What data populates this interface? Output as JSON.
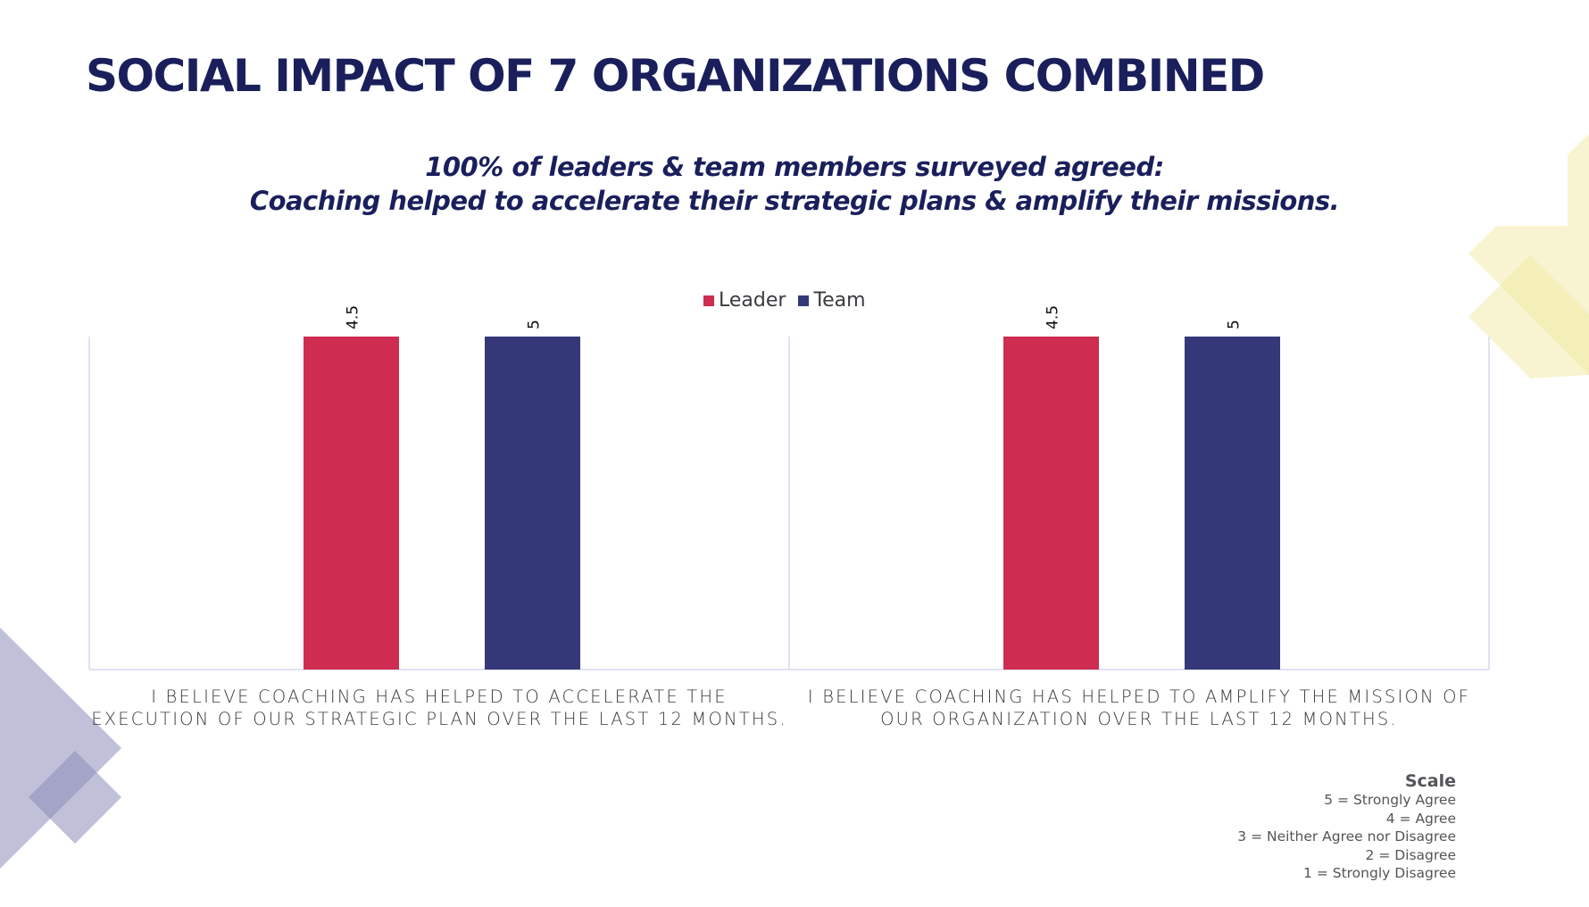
{
  "slide": {
    "title": "SOCIAL IMPACT OF 7 ORGANIZATIONS COMBINED",
    "subtitle_lines": [
      "100% of leaders & team members surveyed agreed:",
      "Coaching helped to accelerate their strategic plans & amplify their missions."
    ],
    "colors": {
      "title": "#1a1f5c",
      "leader": "#cf2c51",
      "team": "#353878",
      "decor_purple": "#8c8cba",
      "decor_yellow": "#f0e79a"
    }
  },
  "scale": {
    "title": "Scale",
    "items": [
      "5 = Strongly Agree",
      "4 = Agree",
      "3 = Neither Agree nor Disagree",
      "2 = Disagree",
      "1 = Strongly Disagree"
    ]
  },
  "chart_data": {
    "type": "bar",
    "title": "",
    "xlabel": "",
    "ylabel": "",
    "legend_position": "top-center",
    "grid": false,
    "categories": [
      [
        "I BELIEVE COACHING HAS HELPED TO ACCELERATE THE",
        "EXECUTION OF OUR STRATEGIC PLAN OVER THE LAST 12 MONTHS."
      ],
      [
        "I BELIEVE COACHING HAS HELPED TO AMPLIFY THE MISSION OF",
        "OUR ORGANIZATION OVER THE LAST 12 MONTHS."
      ]
    ],
    "series": [
      {
        "name": "Leader",
        "color": "#cf2c51",
        "values": [
          4.5,
          4.5
        ],
        "data_labels": [
          "4.5",
          "4.5"
        ]
      },
      {
        "name": "Team",
        "color": "#353878",
        "values": [
          5,
          5
        ],
        "data_labels": [
          "5",
          "5"
        ]
      }
    ],
    "note": "Bars are drawn at equal full height in the source image"
  }
}
